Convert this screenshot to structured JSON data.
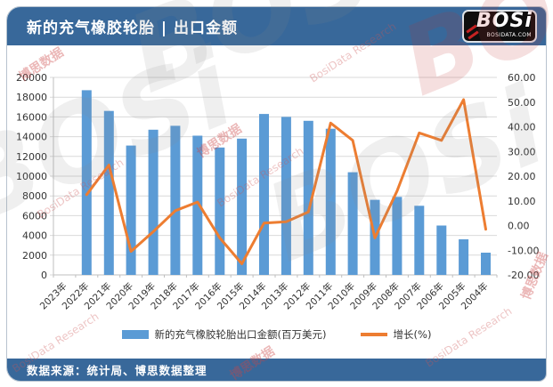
{
  "header": {
    "title": "新的充气橡胶轮胎 | 出口金额",
    "logo": {
      "text": "BOSi",
      "domain": "BOSIDATA.COM"
    }
  },
  "footer": {
    "source": "数据来源：统计局、博思数据整理"
  },
  "watermarks": {
    "brand_cn": "博思数据",
    "brand_en": "BosiData Research",
    "logo_text": "BOSi"
  },
  "theme": {
    "banner_bg": "#38689A",
    "banner_text": "#FFFFFF",
    "grid_color": "#D9D9D9",
    "axis_color": "#BFBFBF",
    "label_color": "#333333"
  },
  "chart_data": {
    "type": "combo-bar-line",
    "title": "新的充气橡胶轮胎 | 出口金额",
    "categories": [
      "2023年",
      "2022年",
      "2021年",
      "2020年",
      "2019年",
      "2018年",
      "2017年",
      "2016年",
      "2015年",
      "2014年",
      "2013年",
      "2012年",
      "2011年",
      "2010年",
      "2009年",
      "2008年",
      "2007年",
      "2006年",
      "2005年",
      "2004年"
    ],
    "series": [
      {
        "name": "新的充气橡胶轮胎出口金额(百万美元)",
        "type": "bar",
        "axis": "left",
        "color": "#5B9BD5",
        "values": [
          null,
          18700,
          16600,
          13100,
          14700,
          15100,
          14100,
          12900,
          13800,
          16300,
          16000,
          15600,
          14800,
          10400,
          7600,
          7900,
          7000,
          5000,
          3600,
          2250
        ]
      },
      {
        "name": "增长(%)",
        "type": "line",
        "axis": "right",
        "color": "#ED7D31",
        "values": [
          null,
          12.5,
          24.5,
          -10.5,
          -2.5,
          6,
          9.5,
          -5,
          -15.5,
          1,
          1.5,
          5.5,
          41.5,
          34.5,
          -5,
          14,
          37.5,
          34.5,
          51,
          -1.5
        ]
      }
    ],
    "axis_left": {
      "min": 0,
      "max": 20000,
      "step": 2000
    },
    "axis_right": {
      "min": -20,
      "max": 60,
      "step": 10,
      "decimals": 2
    },
    "grid": true,
    "legend_position": "bottom"
  }
}
